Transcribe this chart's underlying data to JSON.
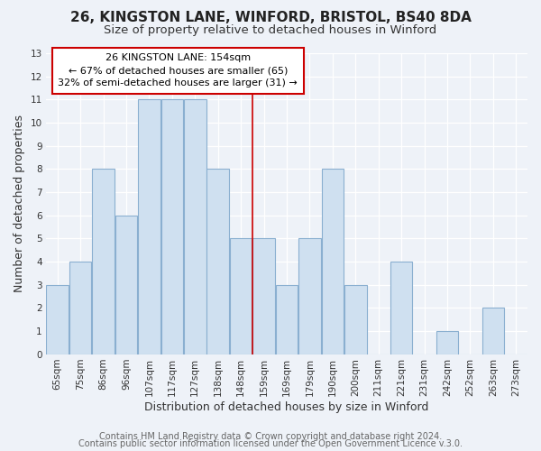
{
  "title": "26, KINGSTON LANE, WINFORD, BRISTOL, BS40 8DA",
  "subtitle": "Size of property relative to detached houses in Winford",
  "xlabel": "Distribution of detached houses by size in Winford",
  "ylabel": "Number of detached properties",
  "bar_labels": [
    "65sqm",
    "75sqm",
    "86sqm",
    "96sqm",
    "107sqm",
    "117sqm",
    "127sqm",
    "138sqm",
    "148sqm",
    "159sqm",
    "169sqm",
    "179sqm",
    "190sqm",
    "200sqm",
    "211sqm",
    "221sqm",
    "231sqm",
    "242sqm",
    "252sqm",
    "263sqm",
    "273sqm"
  ],
  "bar_values": [
    3,
    4,
    8,
    6,
    11,
    11,
    11,
    8,
    5,
    5,
    3,
    5,
    8,
    3,
    0,
    4,
    0,
    1,
    0,
    2,
    0
  ],
  "bar_color": "#cfe0f0",
  "bar_edge_color": "#8aafd0",
  "property_line_x": 8.5,
  "property_line_color": "#cc0000",
  "annotation_title": "26 KINGSTON LANE: 154sqm",
  "annotation_line1": "← 67% of detached houses are smaller (65)",
  "annotation_line2": "32% of semi-detached houses are larger (31) →",
  "annotation_box_color": "#ffffff",
  "annotation_box_edge": "#cc0000",
  "ylim": [
    0,
    13
  ],
  "yticks": [
    0,
    1,
    2,
    3,
    4,
    5,
    6,
    7,
    8,
    9,
    10,
    11,
    12,
    13
  ],
  "footer1": "Contains HM Land Registry data © Crown copyright and database right 2024.",
  "footer2": "Contains public sector information licensed under the Open Government Licence v.3.0.",
  "bg_color": "#eef2f8",
  "plot_bg_color": "#eef2f8",
  "grid_color": "#ffffff",
  "title_fontsize": 11,
  "subtitle_fontsize": 9.5,
  "axis_label_fontsize": 9,
  "tick_fontsize": 7.5,
  "footer_fontsize": 7
}
